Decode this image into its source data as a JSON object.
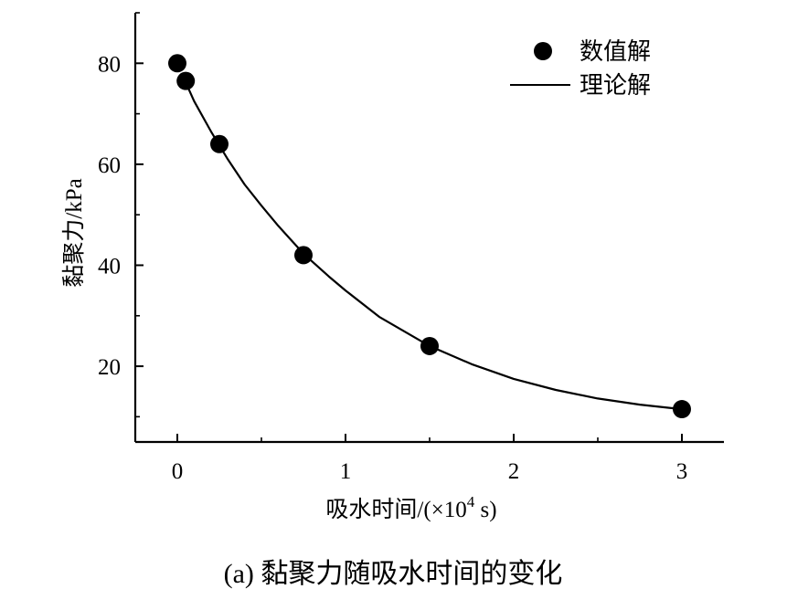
{
  "chart_data": {
    "type": "scatter",
    "title": "",
    "caption": "(a) 黏聚力随吸水时间的变化",
    "xlabel": "吸水时间/(×10",
    "xlabel_sup": "4",
    "xlabel_tail": " s)",
    "ylabel": "黏聚力/kPa",
    "xlim": [
      -0.25,
      3.25
    ],
    "ylim": [
      5,
      90
    ],
    "x_ticks": [
      0,
      1,
      2,
      3
    ],
    "x_tick_labels": [
      "0",
      "1",
      "2",
      "3"
    ],
    "y_ticks": [
      20,
      40,
      60,
      80
    ],
    "y_tick_labels": [
      "20",
      "40",
      "60",
      "80"
    ],
    "grid": false,
    "legend_position": "top-right",
    "series": [
      {
        "name": "数值解",
        "kind": "scatter",
        "x": [
          0,
          0.05,
          0.25,
          0.75,
          1.5,
          3
        ],
        "y": [
          80,
          76.5,
          64,
          42,
          24,
          11.5
        ]
      },
      {
        "name": "理论解",
        "kind": "line",
        "x": [
          0.05,
          0.1,
          0.2,
          0.3,
          0.4,
          0.5,
          0.6,
          0.75,
          0.9,
          1.0,
          1.2,
          1.5,
          1.75,
          2.0,
          2.25,
          2.5,
          2.75,
          3.0
        ],
        "y": [
          76.2,
          72.5,
          66.5,
          61.0,
          56.0,
          51.8,
          47.8,
          42.3,
          37.8,
          35.0,
          29.8,
          24.0,
          20.4,
          17.5,
          15.3,
          13.6,
          12.4,
          11.5
        ]
      }
    ]
  }
}
